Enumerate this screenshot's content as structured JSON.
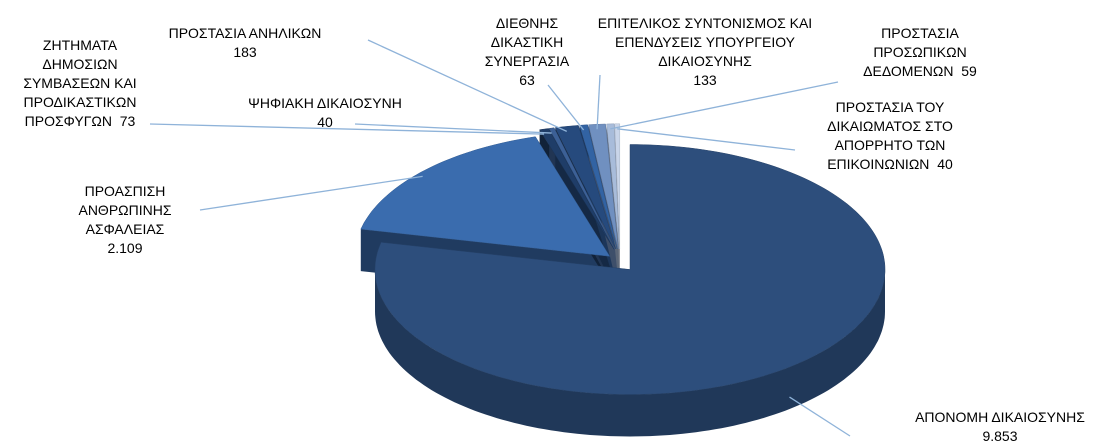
{
  "chart_data": {
    "type": "pie",
    "categories": [
      "ΑΠΟΝΟΜΗ ΔΙΚΑΙΟΣΥΝΗΣ",
      "ΠΡΟΑΣΠΙΣΗ ΑΝΘΡΩΠΙΝΗΣ ΑΣΦΑΛΕΙΑΣ",
      "ΖΗΤΗΜΑΤΑ ΔΗΜΟΣΙΩΝ ΣΥΜΒΑΣΕΩΝ ΚΑΙ ΠΡΟΔΙΚΑΣΤΙΚΩΝ ΠΡΟΣΦΥΓΩΝ",
      "ΨΗΦΙΑΚΗ ΔΙΚΑΙΟΣΥΝΗ",
      "ΠΡΟΣΤΑΣΙΑ ΑΝΗΛΙΚΩΝ",
      "ΔΙΕΘΝΗΣ ΔΙΚΑΣΤΙΚΗ ΣΥΝΕΡΓΑΣΙΑ",
      "ΕΠΙΤΕΛΙΚΟΣ ΣΥΝΤΟΝΙΣΜΟΣ ΚΑΙ ΕΠΕΝΔΥΣΕΙΣ ΥΠΟΥΡΓΕΙΟΥ ΔΙΚΑΙΟΣΥΝΗΣ",
      "ΠΡΟΣΤΑΣΙΑ ΠΡΟΣΩΠΙΚΩΝ ΔΕΔΟΜΕΝΩΝ",
      "ΠΡΟΣΤΑΣΙΑ ΤΟΥ ΔΙΚΑΙΩΜΑΤΟΣ ΣΤΟ ΑΠΟΡΡΗΤΟ ΤΩΝ ΕΠΙΚΟΙΝΩΝΙΩΝ"
    ],
    "values": [
      9853,
      2109,
      73,
      40,
      183,
      63,
      133,
      59,
      40
    ],
    "value_labels": [
      "9.853",
      "2.109",
      "73",
      "40",
      "183",
      "63",
      "133",
      "59",
      "40"
    ],
    "colors": [
      "#2d4e7c",
      "#3a6cae",
      "#1f3d68",
      "#3c6096",
      "#264a7d",
      "#3263a3",
      "#7090c0",
      "#a8bcda",
      "#c9d5e9"
    ]
  }
}
